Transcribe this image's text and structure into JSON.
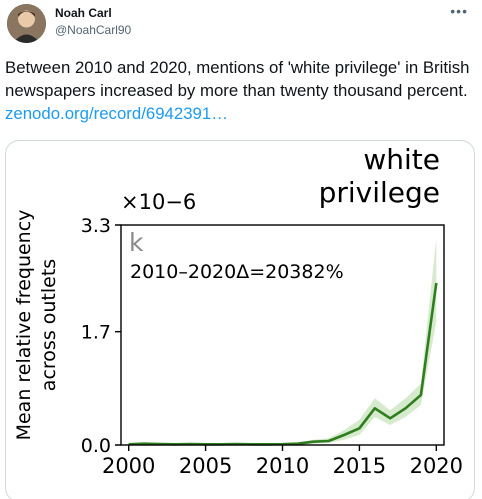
{
  "author": {
    "name": "Noah Carl",
    "handle": "@NoahCarl90"
  },
  "more_icon": "more-horizontal-icon",
  "tweet": {
    "text": "Between 2010 and 2020, mentions of 'white privilege' in British newspapers increased by more than twenty thousand percent. ",
    "link": "zenodo.org/record/6942391…"
  },
  "chart_data": {
    "type": "line",
    "title": "white\nprivilege",
    "panel_letter": "k",
    "annotation": "2010–2020Δ=20382%",
    "ylabel": "Mean relative frequency\nacross outlets",
    "xlabel": "",
    "y_multiplier": "×10−6",
    "xlim": [
      1999.5,
      2020.5
    ],
    "ylim": [
      0,
      3.3
    ],
    "xticks": [
      "2000",
      "2005",
      "2010",
      "2015",
      "2020"
    ],
    "yticks": [
      "0.0",
      "1.7",
      "3.3"
    ],
    "grid": false,
    "series": [
      {
        "color": "#2e7d1e",
        "band_color": "#cfe8c4",
        "x": [
          2000,
          2001,
          2002,
          2003,
          2004,
          2005,
          2006,
          2007,
          2008,
          2009,
          2010,
          2011,
          2012,
          2013,
          2014,
          2015,
          2016,
          2017,
          2018,
          2019,
          2020
        ],
        "values": [
          0.01,
          0.02,
          0.015,
          0.01,
          0.015,
          0.01,
          0.01,
          0.015,
          0.01,
          0.01,
          0.012,
          0.02,
          0.05,
          0.06,
          0.15,
          0.25,
          0.55,
          0.4,
          0.55,
          0.75,
          2.43
        ],
        "lower": [
          0.0,
          0.0,
          0.0,
          0.0,
          0.0,
          0.0,
          0.0,
          0.0,
          0.0,
          0.0,
          0.0,
          0.0,
          0.02,
          0.03,
          0.08,
          0.15,
          0.42,
          0.3,
          0.42,
          0.6,
          1.85
        ],
        "upper": [
          0.03,
          0.04,
          0.03,
          0.02,
          0.03,
          0.02,
          0.02,
          0.03,
          0.02,
          0.02,
          0.03,
          0.04,
          0.08,
          0.1,
          0.22,
          0.38,
          0.7,
          0.52,
          0.7,
          0.92,
          3.1
        ]
      }
    ]
  }
}
